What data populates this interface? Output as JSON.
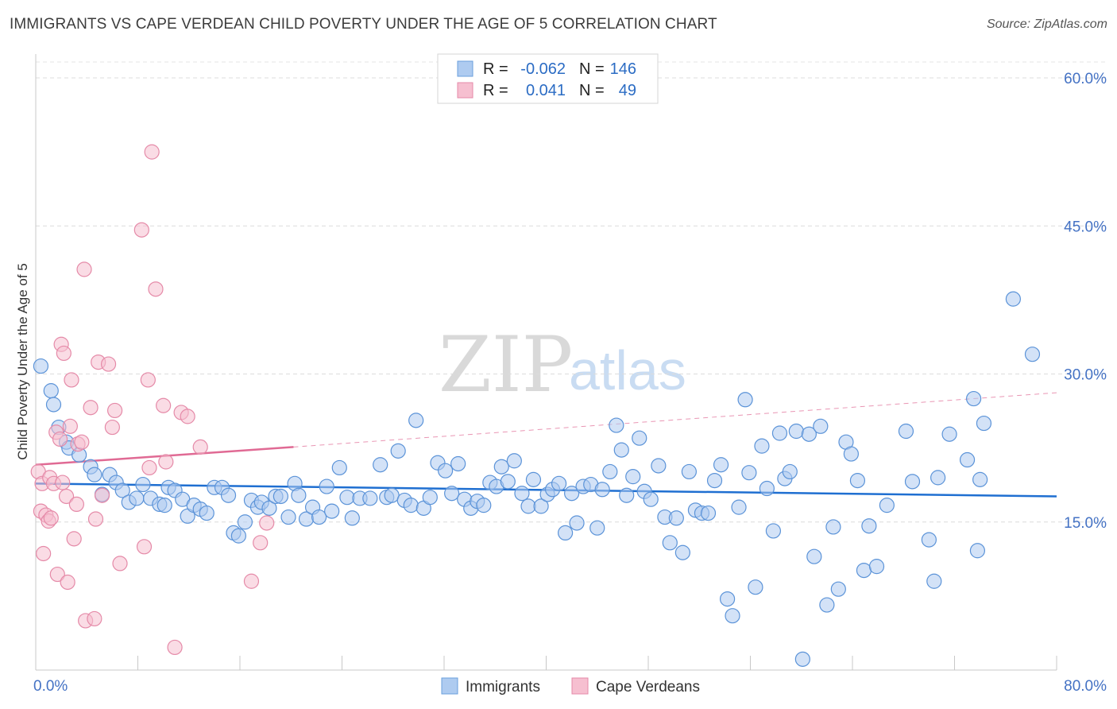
{
  "header": {
    "title": "IMMIGRANTS VS CAPE VERDEAN CHILD POVERTY UNDER THE AGE OF 5 CORRELATION CHART",
    "source": "Source: ZipAtlas.com"
  },
  "watermark": {
    "zip": "ZIP",
    "atlas": "atlas"
  },
  "legend": {
    "rows": [
      {
        "r_label": "R = ",
        "r_value": "-0.062",
        "n_label": "N = ",
        "n_value": "146",
        "fill": "#aecbf0",
        "stroke": "#6a9fdc"
      },
      {
        "r_label": "R = ",
        "r_value": "0.041",
        "n_label": "N = ",
        "n_value": "49",
        "fill": "#f6bfd0",
        "stroke": "#e58aa8"
      }
    ]
  },
  "chart_data": {
    "type": "scatter",
    "title": "IMMIGRANTS VS CAPE VERDEAN CHILD POVERTY UNDER THE AGE OF 5 CORRELATION CHART",
    "xlabel": "",
    "ylabel": "Child Poverty Under the Age of 5",
    "xlim": [
      0,
      80
    ],
    "ylim": [
      0,
      60
    ],
    "x_tick_labels": [
      "0.0%",
      "80.0%"
    ],
    "y_ticks": [
      15,
      30,
      45,
      60
    ],
    "y_tick_labels": [
      "15.0%",
      "30.0%",
      "45.0%",
      "60.0%"
    ],
    "grid": true,
    "legend_placement": "top-center",
    "series": [
      {
        "name": "Immigrants",
        "color": "#aecbf0",
        "stroke": "#5b93d8",
        "trend": {
          "x": [
            0,
            80
          ],
          "y": [
            18.9,
            17.6
          ],
          "color": "#1f6fd1",
          "style": "solid"
        },
        "points": [
          [
            0.4,
            30.8
          ],
          [
            1.2,
            28.3
          ],
          [
            1.4,
            26.9
          ],
          [
            1.8,
            24.6
          ],
          [
            2.4,
            23.1
          ],
          [
            2.6,
            22.5
          ],
          [
            3.4,
            21.8
          ],
          [
            4.3,
            20.6
          ],
          [
            4.6,
            19.8
          ],
          [
            5.2,
            17.8
          ],
          [
            5.8,
            19.8
          ],
          [
            6.3,
            19.0
          ],
          [
            6.8,
            18.2
          ],
          [
            7.3,
            17.0
          ],
          [
            7.9,
            17.4
          ],
          [
            8.4,
            18.8
          ],
          [
            9.0,
            17.4
          ],
          [
            9.7,
            16.8
          ],
          [
            10.1,
            16.7
          ],
          [
            10.4,
            18.5
          ],
          [
            10.9,
            18.2
          ],
          [
            11.5,
            17.3
          ],
          [
            11.9,
            15.6
          ],
          [
            12.4,
            16.7
          ],
          [
            12.9,
            16.3
          ],
          [
            13.4,
            15.9
          ],
          [
            14.0,
            18.5
          ],
          [
            14.6,
            18.5
          ],
          [
            15.1,
            17.7
          ],
          [
            15.5,
            13.9
          ],
          [
            15.9,
            13.6
          ],
          [
            16.4,
            15.0
          ],
          [
            16.9,
            17.2
          ],
          [
            17.4,
            16.5
          ],
          [
            17.7,
            17.0
          ],
          [
            18.3,
            16.4
          ],
          [
            18.8,
            17.6
          ],
          [
            19.2,
            17.6
          ],
          [
            19.8,
            15.5
          ],
          [
            20.3,
            18.9
          ],
          [
            20.6,
            17.7
          ],
          [
            21.2,
            15.3
          ],
          [
            21.7,
            16.5
          ],
          [
            22.2,
            15.5
          ],
          [
            22.8,
            18.6
          ],
          [
            23.2,
            16.1
          ],
          [
            23.8,
            20.5
          ],
          [
            24.4,
            17.5
          ],
          [
            24.8,
            15.4
          ],
          [
            25.4,
            17.4
          ],
          [
            26.2,
            17.4
          ],
          [
            27.0,
            20.8
          ],
          [
            27.5,
            17.5
          ],
          [
            27.9,
            17.7
          ],
          [
            28.4,
            22.2
          ],
          [
            28.9,
            17.2
          ],
          [
            29.4,
            16.7
          ],
          [
            29.8,
            25.3
          ],
          [
            30.4,
            16.4
          ],
          [
            30.9,
            17.5
          ],
          [
            31.5,
            21.0
          ],
          [
            32.1,
            20.2
          ],
          [
            32.6,
            17.9
          ],
          [
            33.1,
            20.9
          ],
          [
            33.6,
            17.3
          ],
          [
            34.1,
            16.4
          ],
          [
            34.6,
            17.1
          ],
          [
            35.1,
            16.7
          ],
          [
            35.6,
            19.0
          ],
          [
            36.1,
            18.6
          ],
          [
            36.5,
            20.6
          ],
          [
            37.0,
            19.1
          ],
          [
            37.5,
            21.2
          ],
          [
            38.1,
            17.9
          ],
          [
            38.6,
            16.6
          ],
          [
            39.0,
            19.3
          ],
          [
            39.6,
            16.6
          ],
          [
            40.1,
            17.8
          ],
          [
            40.5,
            18.3
          ],
          [
            41.0,
            18.9
          ],
          [
            41.5,
            13.9
          ],
          [
            42.0,
            17.9
          ],
          [
            42.4,
            14.9
          ],
          [
            42.9,
            18.6
          ],
          [
            43.5,
            18.8
          ],
          [
            44.0,
            14.4
          ],
          [
            44.4,
            18.3
          ],
          [
            45.0,
            20.1
          ],
          [
            45.5,
            24.8
          ],
          [
            45.9,
            22.3
          ],
          [
            46.3,
            17.7
          ],
          [
            46.8,
            19.6
          ],
          [
            47.3,
            23.5
          ],
          [
            47.7,
            18.1
          ],
          [
            48.2,
            17.3
          ],
          [
            48.8,
            20.7
          ],
          [
            49.3,
            15.5
          ],
          [
            49.7,
            12.9
          ],
          [
            50.2,
            15.4
          ],
          [
            50.7,
            11.9
          ],
          [
            51.2,
            20.1
          ],
          [
            51.7,
            16.2
          ],
          [
            52.2,
            15.9
          ],
          [
            52.7,
            15.9
          ],
          [
            53.2,
            19.2
          ],
          [
            53.7,
            20.8
          ],
          [
            54.2,
            7.2
          ],
          [
            54.6,
            5.5
          ],
          [
            55.1,
            16.5
          ],
          [
            55.6,
            27.4
          ],
          [
            55.9,
            20.0
          ],
          [
            56.4,
            8.4
          ],
          [
            56.9,
            22.7
          ],
          [
            57.3,
            18.4
          ],
          [
            57.8,
            14.1
          ],
          [
            58.3,
            24.0
          ],
          [
            58.7,
            19.4
          ],
          [
            59.1,
            20.1
          ],
          [
            59.6,
            24.2
          ],
          [
            60.1,
            1.1
          ],
          [
            60.6,
            23.9
          ],
          [
            61.0,
            11.5
          ],
          [
            61.5,
            24.7
          ],
          [
            62.0,
            6.6
          ],
          [
            62.5,
            14.5
          ],
          [
            62.9,
            8.2
          ],
          [
            63.5,
            23.1
          ],
          [
            63.9,
            21.9
          ],
          [
            64.4,
            19.2
          ],
          [
            64.9,
            10.1
          ],
          [
            65.3,
            14.6
          ],
          [
            65.9,
            10.5
          ],
          [
            66.7,
            16.7
          ],
          [
            68.2,
            24.2
          ],
          [
            68.7,
            19.1
          ],
          [
            70.0,
            13.2
          ],
          [
            70.4,
            9.0
          ],
          [
            70.7,
            19.5
          ],
          [
            71.6,
            23.9
          ],
          [
            73.0,
            21.3
          ],
          [
            73.5,
            27.5
          ],
          [
            73.8,
            12.1
          ],
          [
            74.0,
            19.3
          ],
          [
            74.3,
            25.0
          ],
          [
            76.6,
            37.6
          ],
          [
            78.1,
            32.0
          ]
        ]
      },
      {
        "name": "Cape Verdeans",
        "color": "#f6bfd0",
        "stroke": "#e58aa8",
        "trend": {
          "x": [
            0,
            20.2
          ],
          "y": [
            20.8,
            22.6
          ],
          "color": "#e06a94",
          "style": "solid",
          "extension": {
            "x": [
              20.2,
              80
            ],
            "y": [
              22.6,
              28.1
            ],
            "style": "dashed"
          }
        },
        "points": [
          [
            0.2,
            20.1
          ],
          [
            0.4,
            16.1
          ],
          [
            0.5,
            18.9
          ],
          [
            0.6,
            11.8
          ],
          [
            0.8,
            15.7
          ],
          [
            1.0,
            15.1
          ],
          [
            1.1,
            19.5
          ],
          [
            1.2,
            15.4
          ],
          [
            1.4,
            18.9
          ],
          [
            1.6,
            24.1
          ],
          [
            1.7,
            9.7
          ],
          [
            1.9,
            23.4
          ],
          [
            2.0,
            33.0
          ],
          [
            2.1,
            19.0
          ],
          [
            2.2,
            32.1
          ],
          [
            2.4,
            17.6
          ],
          [
            2.5,
            8.9
          ],
          [
            2.7,
            24.7
          ],
          [
            2.8,
            29.4
          ],
          [
            3.0,
            13.3
          ],
          [
            3.2,
            16.8
          ],
          [
            3.3,
            22.9
          ],
          [
            3.6,
            23.1
          ],
          [
            3.8,
            40.6
          ],
          [
            3.9,
            5.0
          ],
          [
            4.3,
            26.6
          ],
          [
            4.6,
            5.2
          ],
          [
            4.7,
            15.3
          ],
          [
            4.9,
            31.2
          ],
          [
            5.2,
            17.7
          ],
          [
            5.7,
            31.0
          ],
          [
            6.0,
            24.6
          ],
          [
            6.2,
            26.3
          ],
          [
            6.6,
            10.8
          ],
          [
            8.3,
            44.6
          ],
          [
            8.5,
            12.5
          ],
          [
            8.8,
            29.4
          ],
          [
            8.9,
            20.5
          ],
          [
            9.1,
            52.5
          ],
          [
            9.4,
            38.6
          ],
          [
            10.0,
            26.8
          ],
          [
            10.2,
            21.1
          ],
          [
            10.9,
            2.3
          ],
          [
            11.4,
            26.1
          ],
          [
            11.9,
            25.7
          ],
          [
            12.9,
            22.6
          ],
          [
            16.9,
            9.0
          ],
          [
            17.6,
            12.9
          ],
          [
            18.1,
            14.9
          ]
        ]
      }
    ]
  },
  "bottom_legend": [
    {
      "label": "Immigrants",
      "fill": "#aecbf0",
      "stroke": "#6a9fdc"
    },
    {
      "label": "Cape Verdeans",
      "fill": "#f6bfd0",
      "stroke": "#e58aa8"
    }
  ]
}
